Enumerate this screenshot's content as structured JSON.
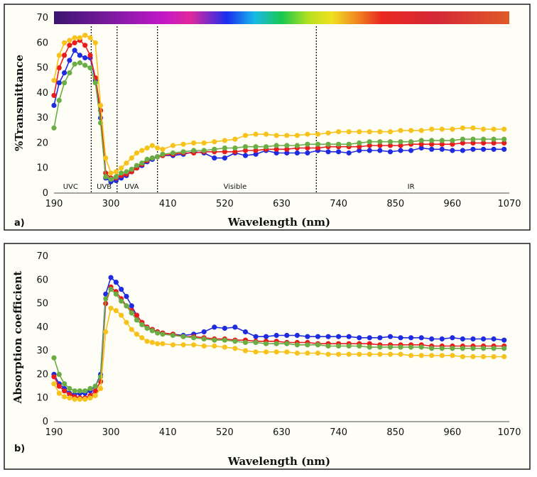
{
  "colors": {
    "blue": "#1f2be0",
    "red": "#e81c1c",
    "green": "#6aad45",
    "orange": "#f7c21c"
  },
  "chart_data": [
    {
      "type": "line",
      "panel_label": "a)",
      "title": "",
      "xlabel": "Wavelength (nm)",
      "ylabel": "%Transmittance",
      "xlim": [
        190,
        1070
      ],
      "ylim": [
        0,
        70
      ],
      "xticks": [
        "190",
        "300",
        "410",
        "520",
        "630",
        "740",
        "850",
        "960",
        "1070"
      ],
      "yticks": [
        "0",
        "10",
        "20",
        "30",
        "40",
        "50",
        "60",
        "70"
      ],
      "spectrum_bar": true,
      "region_lines": [
        262,
        312,
        390,
        697
      ],
      "regions": [
        {
          "label": "UVC",
          "x": 222
        },
        {
          "label": "UVB",
          "x": 287
        },
        {
          "label": "UVA",
          "x": 340
        },
        {
          "label": "Visible",
          "x": 540
        },
        {
          "label": "IR",
          "x": 880
        }
      ],
      "series": [
        {
          "name": "blue",
          "color_key": "blue",
          "x": [
            190,
            200,
            210,
            220,
            230,
            240,
            250,
            260,
            270,
            280,
            290,
            300,
            310,
            320,
            330,
            340,
            350,
            360,
            370,
            380,
            390,
            400,
            420,
            440,
            460,
            480,
            500,
            520,
            540,
            560,
            580,
            600,
            620,
            640,
            660,
            680,
            700,
            720,
            740,
            760,
            780,
            800,
            820,
            840,
            860,
            880,
            900,
            920,
            940,
            960,
            980,
            1000,
            1020,
            1040,
            1060
          ],
          "y": [
            35,
            44,
            48,
            53,
            57,
            55,
            54,
            54,
            45,
            30,
            6,
            4.5,
            5,
            6,
            7,
            8.5,
            10,
            11,
            12.5,
            13.5,
            14.5,
            15,
            15,
            15.5,
            16.5,
            16,
            14,
            14,
            16,
            15,
            15.5,
            17,
            16,
            16,
            16,
            16,
            17,
            16.5,
            16.5,
            16,
            17,
            17,
            17,
            16.5,
            17,
            17,
            18,
            17.5,
            17.5,
            17,
            17,
            17.5,
            17.5,
            17.5,
            17.5
          ]
        },
        {
          "name": "red",
          "color_key": "red",
          "x": [
            190,
            200,
            210,
            220,
            230,
            240,
            250,
            260,
            270,
            280,
            290,
            300,
            310,
            320,
            330,
            340,
            350,
            360,
            370,
            380,
            390,
            400,
            420,
            440,
            460,
            480,
            500,
            520,
            540,
            560,
            580,
            600,
            620,
            640,
            660,
            680,
            700,
            720,
            740,
            760,
            780,
            800,
            820,
            840,
            860,
            880,
            900,
            920,
            940,
            960,
            980,
            1000,
            1020,
            1040,
            1060
          ],
          "y": [
            39,
            50,
            55,
            59,
            60,
            61,
            59,
            55,
            46,
            33,
            8,
            6,
            6,
            7,
            7.5,
            8.5,
            10,
            11.5,
            13,
            14,
            14.5,
            15,
            15.5,
            16,
            16,
            16.5,
            16.5,
            16.5,
            16.5,
            17,
            17,
            17.5,
            17.5,
            17.5,
            18,
            18,
            18,
            18.5,
            18.5,
            18.5,
            18.5,
            19,
            19,
            19,
            19,
            19.5,
            19.5,
            19.5,
            19.5,
            19.5,
            20,
            20,
            20,
            20,
            20
          ]
        },
        {
          "name": "green",
          "color_key": "green",
          "x": [
            190,
            200,
            210,
            220,
            230,
            240,
            250,
            260,
            270,
            280,
            290,
            300,
            310,
            320,
            330,
            340,
            350,
            360,
            370,
            380,
            390,
            400,
            420,
            440,
            460,
            480,
            500,
            520,
            540,
            560,
            580,
            600,
            620,
            640,
            660,
            680,
            700,
            720,
            740,
            760,
            780,
            800,
            820,
            840,
            860,
            880,
            900,
            920,
            940,
            960,
            980,
            1000,
            1020,
            1040,
            1060
          ],
          "y": [
            26,
            37,
            44,
            48,
            51.5,
            52,
            51,
            50,
            44,
            28,
            6.5,
            5.5,
            6.5,
            8,
            8.5,
            9.5,
            11,
            12,
            13.5,
            14,
            14.5,
            15.5,
            16,
            16.5,
            17,
            17,
            17.5,
            18,
            18,
            18.5,
            18.5,
            18.5,
            19,
            19,
            19,
            19.5,
            19.5,
            19.5,
            19.5,
            19.5,
            20,
            20.5,
            20.5,
            20.5,
            20.5,
            20.5,
            21,
            21,
            21,
            21,
            21.5,
            21.5,
            21.5,
            21.5,
            21.5
          ]
        },
        {
          "name": "orange",
          "color_key": "orange",
          "x": [
            190,
            200,
            210,
            220,
            230,
            240,
            250,
            260,
            270,
            280,
            290,
            300,
            310,
            320,
            330,
            340,
            350,
            360,
            370,
            380,
            390,
            400,
            420,
            440,
            460,
            480,
            500,
            520,
            540,
            560,
            580,
            600,
            620,
            640,
            660,
            680,
            700,
            720,
            740,
            760,
            780,
            800,
            820,
            840,
            860,
            880,
            900,
            920,
            940,
            960,
            980,
            1000,
            1020,
            1040,
            1060
          ],
          "y": [
            45,
            55,
            60,
            61,
            62,
            62,
            63,
            62,
            60,
            35,
            14,
            8,
            8.5,
            10,
            12,
            14,
            16,
            17,
            18,
            19,
            18,
            17.5,
            19,
            19.5,
            20,
            20,
            20.5,
            21,
            21.5,
            23,
            23.5,
            23.5,
            23,
            23,
            23,
            23.5,
            23.5,
            24,
            24.5,
            24.5,
            24.5,
            24.5,
            24.5,
            24.5,
            25,
            25,
            25,
            25.5,
            25.5,
            25.5,
            26,
            26,
            25.5,
            25.5,
            25.5
          ]
        }
      ]
    },
    {
      "type": "line",
      "panel_label": "b)",
      "title": "",
      "xlabel": "Wavelength (nm)",
      "ylabel": "Absorption coefficient",
      "xlim": [
        190,
        1070
      ],
      "ylim": [
        0,
        70
      ],
      "xticks": [
        "190",
        "300",
        "410",
        "520",
        "630",
        "740",
        "850",
        "960",
        "1070"
      ],
      "yticks": [
        "0",
        "10",
        "20",
        "30",
        "40",
        "50",
        "60",
        "70"
      ],
      "series": [
        {
          "name": "blue",
          "color_key": "blue",
          "x": [
            190,
            200,
            210,
            220,
            230,
            240,
            250,
            260,
            270,
            280,
            290,
            300,
            310,
            320,
            330,
            340,
            350,
            360,
            370,
            380,
            390,
            400,
            420,
            440,
            460,
            480,
            500,
            520,
            540,
            560,
            580,
            600,
            620,
            640,
            660,
            680,
            700,
            720,
            740,
            760,
            780,
            800,
            820,
            840,
            860,
            880,
            900,
            920,
            940,
            960,
            980,
            1000,
            1020,
            1040,
            1060
          ],
          "y": [
            20,
            16,
            14,
            12,
            11.5,
            12,
            12,
            13,
            15,
            20,
            54,
            61,
            59,
            56,
            53,
            49,
            45,
            42,
            40,
            39,
            38,
            37.5,
            37,
            36.5,
            37,
            38,
            40,
            39.5,
            40,
            38,
            36,
            36,
            36.5,
            36.5,
            36.5,
            36,
            36,
            36,
            36,
            36,
            35.5,
            35.5,
            35.5,
            36,
            35.5,
            35.5,
            35.5,
            35,
            35,
            35.5,
            35,
            35,
            35,
            35,
            34.5
          ]
        },
        {
          "name": "red",
          "color_key": "red",
          "x": [
            190,
            200,
            210,
            220,
            230,
            240,
            250,
            260,
            270,
            280,
            290,
            300,
            310,
            320,
            330,
            340,
            350,
            360,
            370,
            380,
            390,
            400,
            420,
            440,
            460,
            480,
            500,
            520,
            540,
            560,
            580,
            600,
            620,
            640,
            660,
            680,
            700,
            720,
            740,
            760,
            780,
            800,
            820,
            840,
            860,
            880,
            900,
            920,
            940,
            960,
            980,
            1000,
            1020,
            1040,
            1060
          ],
          "y": [
            19,
            15,
            13,
            11.5,
            10.5,
            10,
            10,
            11,
            13,
            17,
            50,
            57,
            55,
            52,
            49,
            47,
            45,
            42,
            40,
            39,
            38,
            37.5,
            37,
            36,
            36,
            35.5,
            35,
            35,
            34.5,
            34.5,
            34,
            34,
            34,
            33.5,
            33.5,
            33.5,
            33,
            33,
            33,
            33,
            33,
            33,
            32.5,
            32.5,
            32.5,
            32.5,
            32.5,
            32,
            32,
            32,
            32,
            32,
            32,
            32,
            32
          ]
        },
        {
          "name": "green",
          "color_key": "green",
          "x": [
            190,
            200,
            210,
            220,
            230,
            240,
            250,
            260,
            270,
            280,
            290,
            300,
            310,
            320,
            330,
            340,
            350,
            360,
            370,
            380,
            390,
            400,
            420,
            440,
            460,
            480,
            500,
            520,
            540,
            560,
            580,
            600,
            620,
            640,
            660,
            680,
            700,
            720,
            740,
            760,
            780,
            800,
            820,
            840,
            860,
            880,
            900,
            920,
            940,
            960,
            980,
            1000,
            1020,
            1040,
            1060
          ],
          "y": [
            27,
            20,
            16,
            14,
            13,
            13,
            13,
            14,
            15,
            19,
            52,
            56,
            54,
            51,
            49,
            46,
            43,
            41,
            39.5,
            38.5,
            37.5,
            37,
            36.5,
            36,
            35.5,
            35,
            34.5,
            34.5,
            34,
            33.5,
            33.5,
            33,
            33,
            33,
            32.5,
            32.5,
            32.5,
            32,
            32,
            32,
            32,
            31.5,
            31.5,
            31.5,
            31.5,
            31.5,
            31.5,
            31,
            31,
            31,
            31,
            31,
            31,
            31,
            31
          ]
        },
        {
          "name": "orange",
          "color_key": "orange",
          "x": [
            190,
            200,
            210,
            220,
            230,
            240,
            250,
            260,
            270,
            280,
            290,
            300,
            310,
            320,
            330,
            340,
            350,
            360,
            370,
            380,
            390,
            400,
            420,
            440,
            460,
            480,
            500,
            520,
            540,
            560,
            580,
            600,
            620,
            640,
            660,
            680,
            700,
            720,
            740,
            760,
            780,
            800,
            820,
            840,
            860,
            880,
            900,
            920,
            940,
            960,
            980,
            1000,
            1020,
            1040,
            1060
          ],
          "y": [
            16,
            12,
            10.5,
            10,
            9.5,
            9.5,
            9.5,
            10,
            11,
            14,
            38,
            48,
            47,
            45,
            42,
            39,
            37,
            35.5,
            34,
            33.5,
            33,
            33,
            32.5,
            32.5,
            32.5,
            32,
            32,
            31.5,
            31,
            30,
            29.5,
            29.5,
            29.5,
            29.5,
            29,
            29,
            29,
            28.5,
            28.5,
            28.5,
            28.5,
            28.5,
            28.5,
            28.5,
            28.5,
            28,
            28,
            28,
            28,
            28,
            27.5,
            27.5,
            27.5,
            27.5,
            27.5
          ]
        }
      ]
    }
  ]
}
